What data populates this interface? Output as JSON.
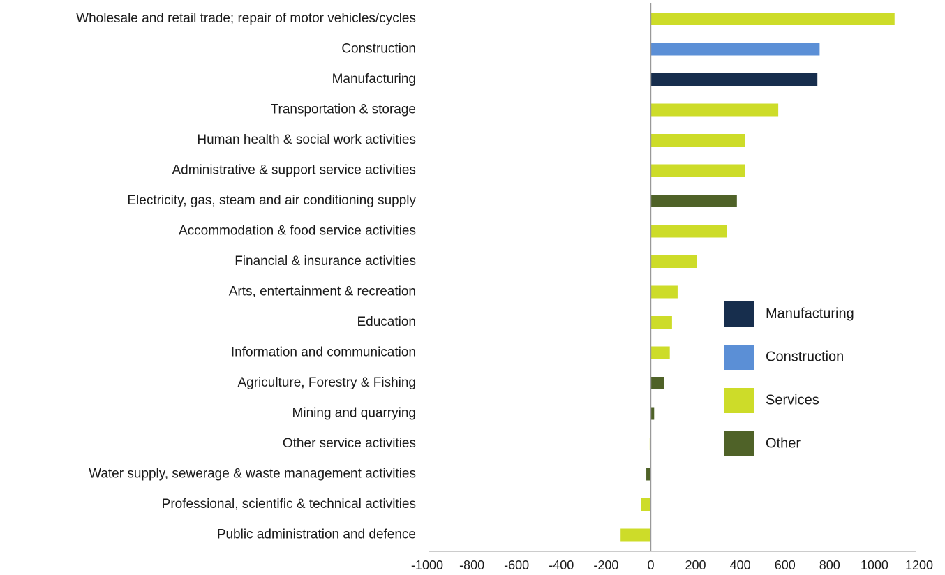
{
  "chart_data": {
    "type": "hbar",
    "categories": [
      "Wholesale and retail trade; repair of motor vehicles/cycles",
      "Construction",
      "Manufacturing",
      "Transportation & storage",
      "Human health & social work activities",
      "Administrative & support service activities",
      "Electricity, gas, steam and air conditioning supply",
      "Accommodation & food service activities",
      "Financial & insurance activities",
      "Arts, entertainment & recreation",
      "Education",
      "Information and communication",
      "Agriculture, Forestry & Fishing",
      "Mining and quarrying",
      "Other service activities",
      "Water supply, sewerage & waste management  activities",
      "Professional, scientific & technical activities",
      "Public administration and defence"
    ],
    "values": [
      1090,
      755,
      745,
      570,
      420,
      420,
      385,
      340,
      205,
      120,
      95,
      85,
      60,
      15,
      -5,
      -20,
      -45,
      -135
    ],
    "colors": [
      "#cddc29",
      "#5b8fd6",
      "#172e4d",
      "#cddc29",
      "#cddc29",
      "#cddc29",
      "#4f6228",
      "#cddc29",
      "#cddc29",
      "#cddc29",
      "#cddc29",
      "#cddc29",
      "#4f6228",
      "#4f6228",
      "#cddc29",
      "#4f6228",
      "#cddc29",
      "#cddc29"
    ],
    "legend": [
      {
        "name": "Manufacturing",
        "color": "#172e4d"
      },
      {
        "name": "Construction",
        "color": "#5b8fd6"
      },
      {
        "name": "Services",
        "color": "#cddc29"
      },
      {
        "name": "Other",
        "color": "#4f6228"
      }
    ],
    "xlim": [
      -1000,
      1200
    ],
    "xticks": [
      -1000,
      -800,
      -600,
      -400,
      -200,
      0,
      200,
      400,
      600,
      800,
      1000,
      1200
    ]
  }
}
